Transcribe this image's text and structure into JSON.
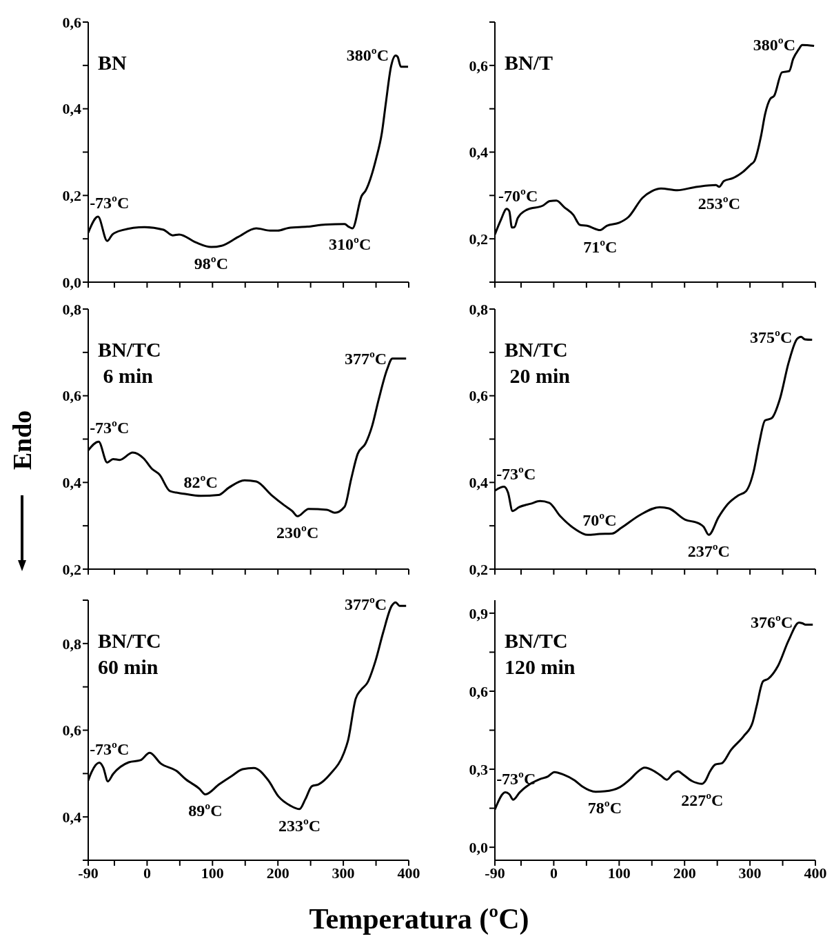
{
  "chart_data": [
    {
      "type": "line",
      "title": "BN",
      "color": "#000000",
      "tick_labels": "y",
      "xlim": [
        -90,
        400
      ],
      "ylim": [
        0,
        0.6
      ],
      "xticks": [
        -90,
        {
          "value": -50,
          "label": null
        },
        0,
        {
          "value": 50,
          "label": null
        },
        100,
        {
          "value": 150,
          "label": null
        },
        200,
        {
          "value": 250,
          "label": null
        },
        300,
        {
          "value": 350,
          "label": null
        },
        400
      ],
      "yticks": [
        {
          "value": 0,
          "label": "0,0"
        },
        {
          "value": 0.1,
          "label": null
        },
        {
          "value": 0.2,
          "label": "0,2"
        },
        {
          "value": 0.3,
          "label": null
        },
        {
          "value": 0.4,
          "label": "0,4"
        },
        {
          "value": 0.5,
          "label": null
        },
        {
          "value": 0.6,
          "label": "0,6"
        }
      ],
      "x": [
        -90,
        -75,
        -61,
        -53,
        -38,
        -4,
        25,
        39,
        49,
        74,
        98,
        114,
        139,
        167,
        188,
        200,
        216,
        245,
        273,
        302,
        308,
        314,
        328,
        334,
        350,
        359,
        365,
        373,
        380,
        383,
        388,
        399
      ],
      "values": [
        0.114,
        0.151,
        0.095,
        0.11,
        0.12,
        0.127,
        0.121,
        0.108,
        0.11,
        0.092,
        0.081,
        0.084,
        0.104,
        0.124,
        0.119,
        0.119,
        0.125,
        0.128,
        0.133,
        0.134,
        0.128,
        0.124,
        0.199,
        0.211,
        0.284,
        0.345,
        0.413,
        0.498,
        0.523,
        0.52,
        0.497,
        0.497
      ],
      "annotations": [
        {
          "text": "-73ºC",
          "x": -73,
          "y": 0.151
        },
        {
          "text": "98ºC",
          "x": 98,
          "y": 0.081
        },
        {
          "text": "310ºC",
          "x": 310,
          "y": 0.126
        },
        {
          "text": "380ºC",
          "x": 380,
          "y": 0.523
        }
      ]
    },
    {
      "type": "line",
      "title": "BN/T",
      "color": "#000000",
      "tick_labels": "y",
      "xlim": [
        -90,
        400
      ],
      "ylim": [
        0.1,
        0.7
      ],
      "xticks": [
        -90,
        {
          "value": -50,
          "label": null
        },
        0,
        {
          "value": 50,
          "label": null
        },
        100,
        {
          "value": 150,
          "label": null
        },
        200,
        {
          "value": 250,
          "label": null
        },
        300,
        {
          "value": 350,
          "label": null
        },
        400
      ],
      "yticks": [
        {
          "value": 0.1,
          "label": null
        },
        {
          "value": 0.2,
          "label": "0,2"
        },
        {
          "value": 0.3,
          "label": null
        },
        {
          "value": 0.4,
          "label": "0,4"
        },
        {
          "value": 0.5,
          "label": null
        },
        {
          "value": 0.6,
          "label": "0,6"
        },
        {
          "value": 0.7,
          "label": null
        }
      ],
      "x": [
        -90,
        -81,
        -72,
        -68,
        -64,
        -60,
        -55,
        -41,
        -16,
        -6,
        4,
        16,
        30,
        40,
        51,
        71,
        81,
        100,
        114,
        136,
        150,
        164,
        189,
        215,
        248,
        253,
        260,
        274,
        289,
        301,
        307,
        317,
        323,
        331,
        337,
        349,
        360,
        366,
        374,
        380,
        398
      ],
      "values": [
        0.21,
        0.243,
        0.269,
        0.264,
        0.226,
        0.227,
        0.248,
        0.267,
        0.277,
        0.287,
        0.288,
        0.273,
        0.255,
        0.232,
        0.23,
        0.22,
        0.23,
        0.237,
        0.25,
        0.295,
        0.31,
        0.316,
        0.312,
        0.319,
        0.324,
        0.32,
        0.333,
        0.34,
        0.354,
        0.371,
        0.38,
        0.438,
        0.487,
        0.523,
        0.53,
        0.584,
        0.587,
        0.615,
        0.636,
        0.647,
        0.645
      ],
      "annotations": [
        {
          "text": "-70ºC",
          "x": -70,
          "y": 0.267
        },
        {
          "text": "71ºC",
          "x": 71,
          "y": 0.22
        },
        {
          "text": "253ºC",
          "x": 253,
          "y": 0.32
        },
        {
          "text": "380ºC",
          "x": 380,
          "y": 0.647
        }
      ]
    },
    {
      "type": "line",
      "title": "BN/TC",
      "subtitle": " 6 min",
      "ylabel": "Endo",
      "color": "#000000",
      "tick_labels": "y",
      "xlim": [
        -90,
        400
      ],
      "ylim": [
        0.2,
        0.8
      ],
      "xticks": [
        -90,
        {
          "value": -50,
          "label": null
        },
        0,
        {
          "value": 50,
          "label": null
        },
        100,
        {
          "value": 150,
          "label": null
        },
        200,
        {
          "value": 250,
          "label": null
        },
        300,
        {
          "value": 350,
          "label": null
        },
        400
      ],
      "yticks": [
        {
          "value": 0.2,
          "label": "0,2"
        },
        {
          "value": 0.3,
          "label": null
        },
        {
          "value": 0.4,
          "label": "0,4"
        },
        {
          "value": 0.5,
          "label": null
        },
        {
          "value": 0.6,
          "label": "0,6"
        },
        {
          "value": 0.7,
          "label": null
        },
        {
          "value": 0.8,
          "label": "0,8"
        }
      ],
      "x": [
        -90,
        -74,
        -61,
        -52,
        -42,
        -22,
        -5,
        7,
        19,
        35,
        56,
        82,
        109,
        125,
        149,
        167,
        190,
        210,
        222,
        230,
        247,
        275,
        287,
        302,
        312,
        322,
        334,
        344,
        354,
        367,
        375,
        396
      ],
      "values": [
        0.474,
        0.494,
        0.446,
        0.454,
        0.452,
        0.469,
        0.455,
        0.432,
        0.418,
        0.38,
        0.374,
        0.369,
        0.371,
        0.388,
        0.405,
        0.402,
        0.371,
        0.347,
        0.334,
        0.322,
        0.339,
        0.337,
        0.33,
        0.344,
        0.408,
        0.466,
        0.49,
        0.53,
        0.591,
        0.661,
        0.686,
        0.686
      ],
      "annotations": [
        {
          "text": "-73ºC",
          "x": -73,
          "y": 0.494
        },
        {
          "text": "82ºC",
          "x": 82,
          "y": 0.369
        },
        {
          "text": "230ºC",
          "x": 230,
          "y": 0.322
        },
        {
          "text": "377ºC",
          "x": 377,
          "y": 0.686
        }
      ]
    },
    {
      "type": "line",
      "title": "BN/TC",
      "subtitle": " 20 min",
      "color": "#000000",
      "tick_labels": "y",
      "xlim": [
        -90,
        400
      ],
      "ylim": [
        0.2,
        0.8
      ],
      "xticks": [
        -90,
        {
          "value": -50,
          "label": null
        },
        0,
        {
          "value": 50,
          "label": null
        },
        100,
        {
          "value": 150,
          "label": null
        },
        200,
        {
          "value": 250,
          "label": null
        },
        300,
        {
          "value": 350,
          "label": null
        },
        400
      ],
      "yticks": [
        {
          "value": 0.2,
          "label": "0,2"
        },
        {
          "value": 0.3,
          "label": null
        },
        {
          "value": 0.4,
          "label": "0,4"
        },
        {
          "value": 0.5,
          "label": null
        },
        {
          "value": 0.6,
          "label": "0,6"
        },
        {
          "value": 0.7,
          "label": null
        },
        {
          "value": 0.8,
          "label": "0,8"
        }
      ],
      "x": [
        -90,
        -76,
        -70,
        -63,
        -53,
        -35,
        -21,
        -7,
        10,
        32,
        52,
        70,
        89,
        103,
        132,
        162,
        176,
        201,
        221,
        229,
        237,
        252,
        266,
        282,
        294,
        306,
        314,
        323,
        333,
        346,
        359,
        372,
        378,
        384,
        395
      ],
      "values": [
        0.381,
        0.39,
        0.377,
        0.334,
        0.343,
        0.351,
        0.357,
        0.353,
        0.322,
        0.293,
        0.279,
        0.281,
        0.282,
        0.295,
        0.325,
        0.343,
        0.34,
        0.314,
        0.306,
        0.298,
        0.279,
        0.32,
        0.35,
        0.37,
        0.38,
        0.428,
        0.49,
        0.543,
        0.548,
        0.594,
        0.676,
        0.731,
        0.736,
        0.73,
        0.729
      ],
      "annotations": [
        {
          "text": "-73ºC",
          "x": -73,
          "y": 0.388
        },
        {
          "text": "70ºC",
          "x": 70,
          "y": 0.281
        },
        {
          "text": "237ºC",
          "x": 237,
          "y": 0.279
        },
        {
          "text": "375ºC",
          "x": 375,
          "y": 0.734
        }
      ]
    },
    {
      "type": "line",
      "title": "BN/TC",
      "subtitle": "60 min",
      "xlabel": "Temperatura (ºC)",
      "color": "#000000",
      "xlim": [
        -90,
        400
      ],
      "ylim": [
        0.3,
        0.9
      ],
      "xticks": [
        -90,
        {
          "value": -50,
          "label": null
        },
        0,
        {
          "value": 50,
          "label": null
        },
        100,
        {
          "value": 150,
          "label": null
        },
        200,
        {
          "value": 250,
          "label": null
        },
        300,
        {
          "value": 350,
          "label": null
        },
        400
      ],
      "yticks": [
        {
          "value": 0.3,
          "label": null
        },
        {
          "value": 0.4,
          "label": "0,4"
        },
        {
          "value": 0.5,
          "label": null
        },
        {
          "value": 0.6,
          "label": "0,6"
        },
        {
          "value": 0.7,
          "label": null
        },
        {
          "value": 0.8,
          "label": "0,8"
        },
        {
          "value": 0.9,
          "label": null
        }
      ],
      "x": [
        -90,
        -85,
        -73,
        -67,
        -60,
        -52,
        -28,
        -10,
        4,
        21,
        45,
        59,
        80,
        89,
        110,
        130,
        146,
        163,
        185,
        201,
        219,
        233,
        242,
        252,
        262,
        280,
        301,
        307,
        319,
        327,
        337,
        349,
        361,
        374,
        380,
        386,
        396
      ],
      "values": [
        0.484,
        0.503,
        0.525,
        0.514,
        0.482,
        0.499,
        0.526,
        0.531,
        0.548,
        0.523,
        0.506,
        0.487,
        0.465,
        0.452,
        0.475,
        0.495,
        0.51,
        0.513,
        0.485,
        0.447,
        0.426,
        0.418,
        0.441,
        0.471,
        0.475,
        0.499,
        0.548,
        0.575,
        0.673,
        0.693,
        0.71,
        0.759,
        0.826,
        0.887,
        0.895,
        0.887,
        0.887
      ],
      "annotations": [
        {
          "text": "-73ºC",
          "x": -73,
          "y": 0.525
        },
        {
          "text": "89ºC",
          "x": 89,
          "y": 0.452
        },
        {
          "text": "233ºC",
          "x": 233,
          "y": 0.418
        },
        {
          "text": "377ºC",
          "x": 377,
          "y": 0.89
        }
      ]
    },
    {
      "type": "line",
      "title": "BN/TC",
      "subtitle": "120 min",
      "color": "#000000",
      "xlim": [
        -90,
        400
      ],
      "ylim": [
        -0.05,
        0.95
      ],
      "xticks": [
        -90,
        {
          "value": -50,
          "label": null
        },
        0,
        {
          "value": 50,
          "label": null
        },
        100,
        {
          "value": 150,
          "label": null
        },
        200,
        {
          "value": 250,
          "label": null
        },
        300,
        {
          "value": 350,
          "label": null
        },
        400
      ],
      "yticks": [
        {
          "value": 0,
          "label": "0,0"
        },
        {
          "value": 0.15,
          "label": null
        },
        {
          "value": 0.3,
          "label": "0,3"
        },
        {
          "value": 0.45,
          "label": null
        },
        {
          "value": 0.6,
          "label": "0,6"
        },
        {
          "value": 0.75,
          "label": null
        },
        {
          "value": 0.9,
          "label": "0,9"
        }
      ],
      "x": [
        -90,
        -74,
        -68,
        -62,
        -52,
        -37,
        -21,
        -9,
        1,
        15,
        32,
        44,
        64,
        78,
        101,
        117,
        127,
        139,
        154,
        164,
        173,
        182,
        190,
        198,
        211,
        227,
        231,
        239,
        247,
        257,
        271,
        291,
        304,
        310,
        320,
        328,
        343,
        359,
        375,
        380,
        385,
        396
      ],
      "values": [
        0.145,
        0.211,
        0.204,
        0.183,
        0.211,
        0.242,
        0.262,
        0.272,
        0.289,
        0.279,
        0.257,
        0.233,
        0.213,
        0.215,
        0.231,
        0.262,
        0.287,
        0.306,
        0.292,
        0.275,
        0.26,
        0.282,
        0.292,
        0.279,
        0.255,
        0.244,
        0.252,
        0.292,
        0.318,
        0.323,
        0.374,
        0.429,
        0.48,
        0.541,
        0.638,
        0.648,
        0.698,
        0.795,
        0.864,
        0.861,
        0.856,
        0.856
      ],
      "annotations": [
        {
          "text": "-73ºC",
          "x": -73,
          "y": 0.211
        },
        {
          "text": "78ºC",
          "x": 78,
          "y": 0.215
        },
        {
          "text": "227ºC",
          "x": 227,
          "y": 0.244
        },
        {
          "text": "376ºC",
          "x": 376,
          "y": 0.864
        }
      ]
    }
  ]
}
